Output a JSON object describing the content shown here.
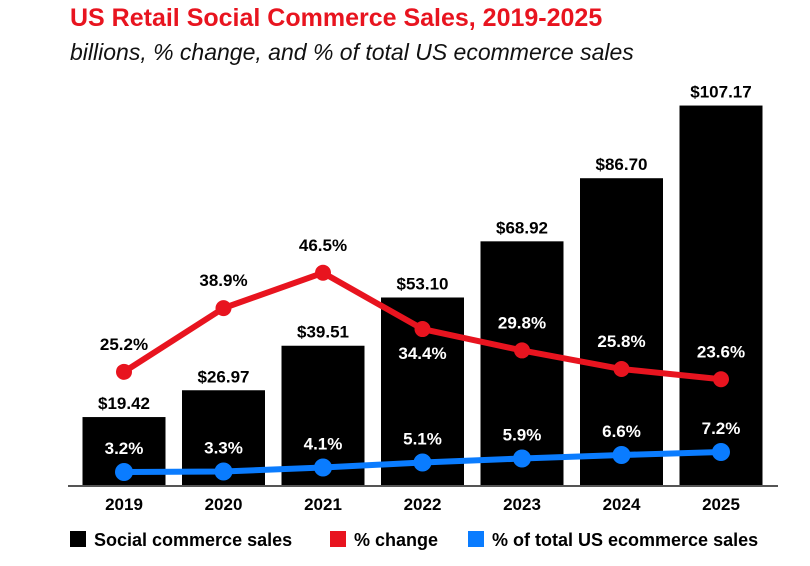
{
  "chart_data": {
    "type": "bar",
    "title": "US Retail Social Commerce Sales, 2019-2025",
    "subtitle": "billions, % change, and % of total US ecommerce sales",
    "categories": [
      "2019",
      "2020",
      "2021",
      "2022",
      "2023",
      "2024",
      "2025"
    ],
    "series": [
      {
        "name": "Social commerce sales",
        "type": "bar",
        "color": "#000000",
        "values": [
          19.42,
          26.97,
          39.51,
          53.1,
          68.92,
          86.7,
          107.17
        ],
        "labels": [
          "$19.42",
          "$26.97",
          "$39.51",
          "$53.10",
          "$68.92",
          "$86.70",
          "$107.17"
        ]
      },
      {
        "name": "% change",
        "type": "line",
        "color": "#e8141f",
        "values": [
          25.2,
          38.9,
          46.5,
          34.4,
          29.8,
          25.8,
          23.6
        ],
        "labels": [
          "25.2%",
          "38.9%",
          "46.5%",
          "34.4%",
          "29.8%",
          "25.8%",
          "23.6%"
        ]
      },
      {
        "name": "% of total US ecommerce sales",
        "type": "line",
        "color": "#0a7cff",
        "values": [
          3.2,
          3.3,
          4.1,
          5.1,
          5.9,
          6.6,
          7.2
        ],
        "labels": [
          "3.2%",
          "3.3%",
          "4.1%",
          "5.1%",
          "5.9%",
          "6.6%",
          "7.2%"
        ]
      }
    ],
    "ylim": [
      0,
      110
    ],
    "grid": false,
    "legend": "bottom"
  }
}
